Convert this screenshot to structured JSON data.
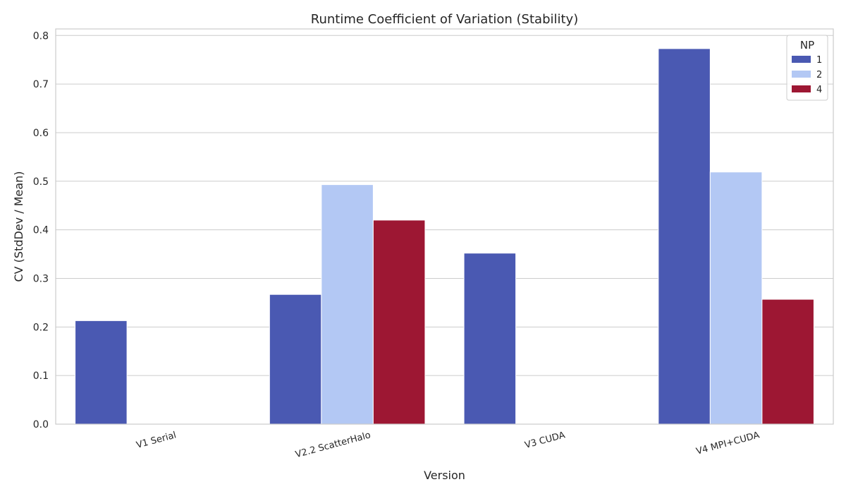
{
  "chart_data": {
    "type": "bar",
    "title": "Runtime Coefficient of Variation (Stability)",
    "xlabel": "Version",
    "ylabel": "CV (StdDev / Mean)",
    "categories": [
      "V1 Serial",
      "V2.2 ScatterHalo",
      "V3 CUDA",
      "V4 MPI+CUDA"
    ],
    "ylim": [
      0,
      0.8135
    ],
    "yticks": [
      0.0,
      0.1,
      0.2,
      0.3,
      0.4,
      0.5,
      0.6,
      0.7,
      0.8
    ],
    "ytick_labels": [
      "0.0",
      "0.1",
      "0.2",
      "0.3",
      "0.4",
      "0.5",
      "0.6",
      "0.7",
      "0.8"
    ],
    "grid": true,
    "legend": {
      "title": "NP",
      "placement": "top-right"
    },
    "series": [
      {
        "name": "1",
        "color": "#4a59b2",
        "values": [
          0.213,
          0.267,
          0.352,
          0.773
        ]
      },
      {
        "name": "2",
        "color": "#b3c8f4",
        "values": [
          0,
          0.493,
          0,
          0.519
        ]
      },
      {
        "name": "4",
        "color": "#9d1733",
        "values": [
          0,
          0.42,
          0,
          0.257
        ]
      }
    ]
  }
}
